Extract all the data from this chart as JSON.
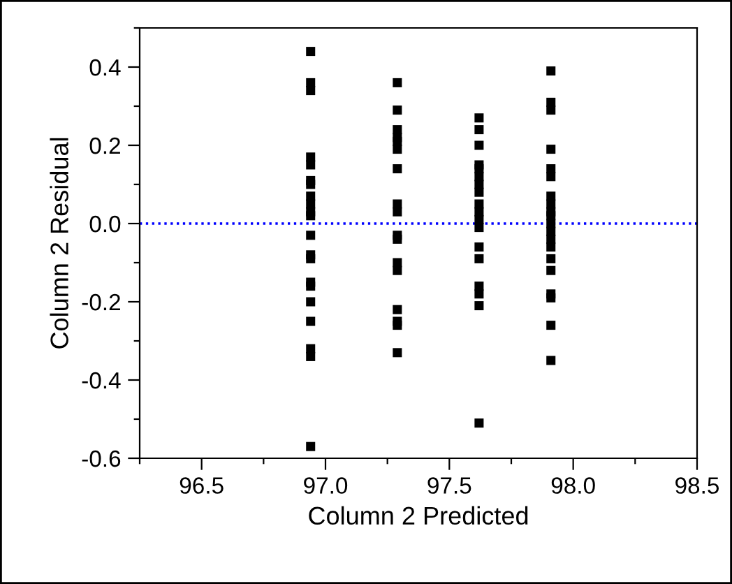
{
  "chart_data": {
    "type": "scatter",
    "xlabel": "Column 2 Predicted",
    "ylabel": "Column 2 Residual",
    "series": [
      {
        "color": "#000000",
        "marker": "square",
        "x": [
          96.94,
          96.94,
          96.94,
          96.94,
          96.94,
          96.94,
          96.94,
          96.94,
          96.94,
          96.94,
          96.94,
          96.94,
          96.94,
          96.94,
          96.94,
          96.94,
          96.94,
          96.94,
          96.94,
          96.94,
          96.94,
          97.29,
          97.29,
          97.29,
          97.29,
          97.29,
          97.29,
          97.29,
          97.29,
          97.29,
          97.29,
          97.29,
          97.29,
          97.29,
          97.29,
          97.29,
          97.29,
          97.29,
          97.62,
          97.62,
          97.62,
          97.62,
          97.62,
          97.62,
          97.62,
          97.62,
          97.62,
          97.62,
          97.62,
          97.62,
          97.62,
          97.62,
          97.62,
          97.62,
          97.62,
          97.62,
          97.91,
          97.91,
          97.91,
          97.91,
          97.91,
          97.91,
          97.91,
          97.91,
          97.91,
          97.91,
          97.91,
          97.91,
          97.91,
          97.91,
          97.91,
          97.91,
          97.91,
          97.91,
          97.91,
          97.91
        ],
        "values": [
          0.44,
          0.36,
          0.34,
          0.17,
          0.15,
          0.11,
          0.1,
          0.07,
          0.05,
          0.03,
          0.02,
          -0.03,
          -0.08,
          -0.09,
          -0.15,
          -0.16,
          -0.2,
          -0.25,
          -0.32,
          -0.34,
          -0.57,
          0.36,
          0.29,
          0.24,
          0.22,
          0.21,
          0.19,
          0.14,
          0.05,
          0.03,
          -0.03,
          -0.04,
          -0.1,
          -0.12,
          -0.22,
          -0.25,
          -0.26,
          -0.33,
          0.27,
          0.24,
          0.2,
          0.15,
          0.14,
          0.12,
          0.1,
          0.08,
          0.05,
          0.03,
          0.01,
          -0.01,
          -0.06,
          -0.09,
          -0.16,
          -0.18,
          -0.21,
          -0.51,
          0.39,
          0.31,
          0.29,
          0.19,
          0.14,
          0.12,
          0.07,
          0.05,
          0.03,
          0.02,
          0.0,
          -0.02,
          -0.04,
          -0.06,
          -0.09,
          -0.12,
          -0.18,
          -0.19,
          -0.26,
          -0.35
        ]
      }
    ],
    "xlim": [
      96.25,
      98.5
    ],
    "xticks": [
      {
        "value": 96.25,
        "label": null
      },
      {
        "value": 96.5,
        "label": "96.5"
      },
      {
        "value": 96.75,
        "label": null
      },
      {
        "value": 97.0,
        "label": "97.0"
      },
      {
        "value": 97.25,
        "label": null
      },
      {
        "value": 97.5,
        "label": "97.5"
      },
      {
        "value": 97.75,
        "label": null
      },
      {
        "value": 98.0,
        "label": "98.0"
      },
      {
        "value": 98.25,
        "label": null
      },
      {
        "value": 98.5,
        "label": "98.5"
      }
    ],
    "ylim": [
      -0.6,
      0.5
    ],
    "yticks": [
      -0.6,
      {
        "value": -0.5,
        "label": null
      },
      -0.4,
      {
        "value": -0.3,
        "label": null
      },
      -0.2,
      {
        "value": -0.1,
        "label": null
      },
      {
        "value": 0.0,
        "label": "0.0"
      },
      {
        "value": 0.1,
        "label": null
      },
      0.2,
      {
        "value": 0.3,
        "label": null
      },
      0.4,
      {
        "value": 0.5,
        "label": null
      }
    ],
    "ref_lines": [
      {
        "axis": "y",
        "value": 0,
        "color": "#0000ff",
        "line_style": "dotted"
      }
    ],
    "grid": false,
    "legend": false
  }
}
